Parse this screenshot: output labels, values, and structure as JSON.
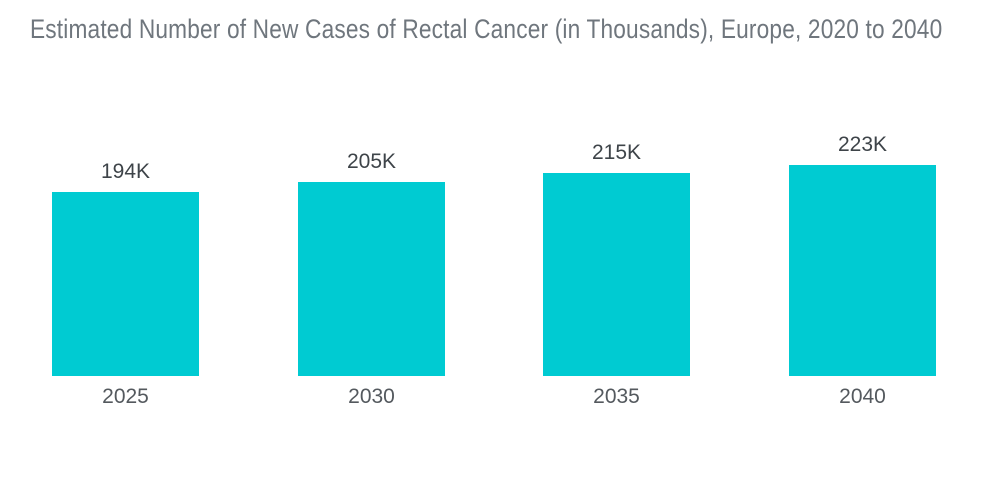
{
  "page": {
    "background": "#FFFFFF"
  },
  "chart_data": {
    "type": "bar",
    "title": "Estimated Number of New Cases of Rectal Cancer (in Thousands), Europe, 2020 to 2040",
    "categories": [
      "2025",
      "2030",
      "2035",
      "2040"
    ],
    "values": [
      194,
      205,
      215,
      223
    ],
    "value_labels": [
      "194K",
      "205K",
      "215K",
      "223K"
    ],
    "unit": "thousands",
    "ylim": [
      0,
      236
    ],
    "axes_visible": false,
    "grid": false,
    "legend": "none",
    "colors": {
      "bar": "#00CBD2",
      "title": "#6F767D",
      "value_label": "#3E4449",
      "category_label": "#54595E",
      "background": "#FFFFFF"
    }
  }
}
